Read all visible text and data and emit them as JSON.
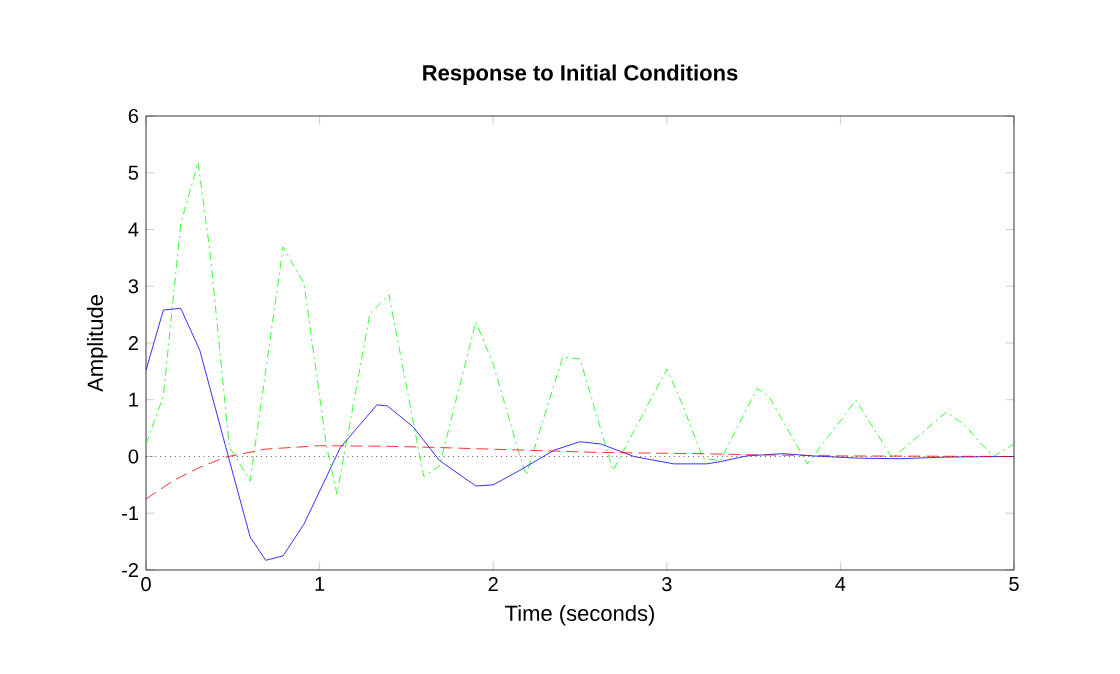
{
  "chart_data": {
    "type": "line",
    "title": "Response to Initial Conditions",
    "xlabel": "Time (seconds)",
    "ylabel": "Amplitude",
    "xlim": [
      0,
      5
    ],
    "xticks": [
      0,
      1,
      2,
      3,
      4,
      5
    ],
    "ylim": [
      -2,
      6
    ],
    "yticks": [
      -2,
      -1,
      0,
      1,
      2,
      3,
      4,
      5,
      6
    ],
    "grid": false,
    "ref_lines": [
      {
        "axis": "y",
        "value": 0,
        "color": "#000000",
        "line_style": "dotted"
      }
    ],
    "series": [
      {
        "color": "#00ff00",
        "line_style": "dashdot",
        "x": [
          0,
          0.1,
          0.2,
          0.3,
          0.37,
          0.48,
          0.6,
          0.79,
          0.91,
          1.04,
          1.1,
          1.29,
          1.4,
          1.56,
          1.6,
          1.69,
          1.9,
          2.0,
          2.15,
          2.19,
          2.4,
          2.5,
          2.69,
          3.0,
          3.08,
          3.21,
          3.31,
          3.52,
          3.59,
          3.81,
          4.09,
          4.3,
          4.61,
          4.71,
          4.88,
          5.0
        ],
        "values": [
          0.22,
          1.06,
          4.1,
          5.18,
          3.57,
          0.17,
          -0.43,
          3.69,
          3.05,
          0.18,
          -0.66,
          2.52,
          2.85,
          0.28,
          -0.35,
          -0.17,
          2.37,
          1.63,
          0.05,
          -0.33,
          1.75,
          1.72,
          -0.25,
          1.54,
          0.99,
          -0.04,
          -0.07,
          1.2,
          1.05,
          -0.13,
          0.99,
          -0.03,
          0.78,
          0.57,
          0.0,
          0.22
        ]
      },
      {
        "color": "#0000ff",
        "line_style": "solid",
        "x": [
          0,
          0.1,
          0.2,
          0.31,
          0.46,
          0.6,
          0.69,
          0.79,
          0.91,
          1.12,
          1.33,
          1.39,
          1.54,
          1.69,
          1.9,
          2.0,
          2.15,
          2.35,
          2.5,
          2.62,
          2.81,
          3.04,
          3.23,
          3.31,
          3.46,
          3.67,
          3.84,
          4.11,
          4.34,
          4.61,
          5.0
        ],
        "values": [
          1.52,
          2.58,
          2.61,
          1.87,
          0.16,
          -1.42,
          -1.83,
          -1.75,
          -1.19,
          0.16,
          0.91,
          0.89,
          0.52,
          -0.07,
          -0.52,
          -0.5,
          -0.25,
          0.11,
          0.26,
          0.22,
          0.0,
          -0.13,
          -0.13,
          -0.09,
          0.01,
          0.05,
          0.01,
          -0.03,
          -0.04,
          -0.01,
          0.0
        ]
      },
      {
        "color": "#ff0000",
        "line_style": "dashed",
        "x": [
          0,
          0.16,
          0.31,
          0.46,
          0.69,
          1.0,
          1.39,
          1.66,
          2.62,
          3.19,
          3.5,
          4.0,
          5.0
        ],
        "values": [
          -0.75,
          -0.42,
          -0.19,
          -0.01,
          0.13,
          0.19,
          0.18,
          0.16,
          0.07,
          0.05,
          0.03,
          0.01,
          0.0
        ]
      }
    ]
  }
}
